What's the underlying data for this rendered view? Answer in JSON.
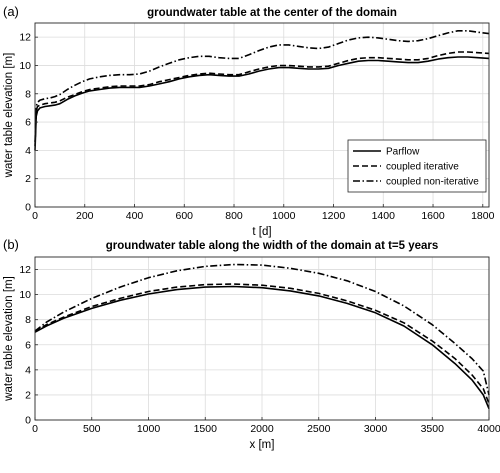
{
  "chart_data": [
    {
      "panel_label": "(a)",
      "type": "line",
      "title": "groundwater table at the center of the domain",
      "xlabel": "t [d]",
      "ylabel": "water table elevation [m]",
      "xlim": [
        0,
        1825
      ],
      "ylim": [
        0,
        13
      ],
      "xticks": [
        0,
        200,
        400,
        600,
        800,
        1000,
        1200,
        1400,
        1600,
        1800
      ],
      "yticks": [
        0,
        2,
        4,
        6,
        8,
        10,
        12
      ],
      "grid": true,
      "legend_position": "bottom-right",
      "series": [
        {
          "name": "Parflow",
          "style": "solid",
          "x": [
            0,
            5,
            10,
            20,
            40,
            60,
            80,
            100,
            130,
            160,
            190,
            220,
            260,
            300,
            340,
            380,
            420,
            460,
            500,
            540,
            580,
            620,
            660,
            700,
            740,
            780,
            820,
            860,
            900,
            940,
            980,
            1020,
            1060,
            1100,
            1140,
            1180,
            1220,
            1260,
            1300,
            1340,
            1380,
            1420,
            1460,
            1500,
            1540,
            1580,
            1620,
            1660,
            1700,
            1740,
            1780,
            1825
          ],
          "values": [
            4.0,
            6.4,
            6.8,
            7.0,
            7.1,
            7.15,
            7.2,
            7.3,
            7.6,
            7.85,
            8.05,
            8.2,
            8.3,
            8.4,
            8.45,
            8.45,
            8.45,
            8.55,
            8.7,
            8.85,
            9.05,
            9.2,
            9.3,
            9.35,
            9.3,
            9.25,
            9.25,
            9.4,
            9.6,
            9.75,
            9.85,
            9.85,
            9.8,
            9.75,
            9.75,
            9.8,
            10.0,
            10.15,
            10.3,
            10.35,
            10.35,
            10.3,
            10.25,
            10.2,
            10.2,
            10.3,
            10.45,
            10.55,
            10.6,
            10.6,
            10.55,
            10.5
          ]
        },
        {
          "name": "coupled iterative",
          "style": "dashed",
          "x": [
            0,
            5,
            10,
            20,
            40,
            60,
            80,
            100,
            130,
            160,
            190,
            220,
            260,
            300,
            340,
            380,
            420,
            460,
            500,
            540,
            580,
            620,
            660,
            700,
            740,
            780,
            820,
            860,
            900,
            940,
            980,
            1020,
            1060,
            1100,
            1140,
            1180,
            1220,
            1260,
            1300,
            1340,
            1380,
            1420,
            1460,
            1500,
            1540,
            1580,
            1620,
            1660,
            1700,
            1740,
            1780,
            1825
          ],
          "values": [
            4.3,
            6.8,
            7.1,
            7.2,
            7.3,
            7.35,
            7.4,
            7.5,
            7.75,
            7.95,
            8.15,
            8.3,
            8.4,
            8.5,
            8.55,
            8.55,
            8.55,
            8.65,
            8.85,
            9.0,
            9.15,
            9.3,
            9.4,
            9.45,
            9.4,
            9.35,
            9.35,
            9.55,
            9.75,
            9.9,
            10.0,
            10.0,
            9.95,
            9.9,
            9.9,
            9.95,
            10.15,
            10.35,
            10.5,
            10.55,
            10.55,
            10.5,
            10.45,
            10.4,
            10.4,
            10.5,
            10.7,
            10.85,
            10.95,
            10.95,
            10.9,
            10.85
          ]
        },
        {
          "name": "coupled non-iterative",
          "style": "dashdot",
          "x": [
            0,
            5,
            10,
            20,
            40,
            60,
            80,
            100,
            130,
            160,
            190,
            220,
            260,
            300,
            340,
            380,
            420,
            460,
            500,
            540,
            580,
            620,
            660,
            700,
            740,
            780,
            820,
            860,
            900,
            940,
            980,
            1020,
            1060,
            1100,
            1140,
            1180,
            1220,
            1260,
            1300,
            1340,
            1380,
            1420,
            1460,
            1500,
            1540,
            1580,
            1620,
            1660,
            1700,
            1740,
            1780,
            1825
          ],
          "values": [
            4.6,
            7.1,
            7.4,
            7.55,
            7.65,
            7.7,
            7.8,
            7.95,
            8.3,
            8.6,
            8.85,
            9.05,
            9.2,
            9.3,
            9.35,
            9.35,
            9.4,
            9.6,
            9.9,
            10.15,
            10.4,
            10.55,
            10.65,
            10.65,
            10.55,
            10.5,
            10.5,
            10.75,
            11.05,
            11.3,
            11.45,
            11.45,
            11.35,
            11.25,
            11.2,
            11.3,
            11.55,
            11.8,
            11.95,
            12.0,
            11.95,
            11.85,
            11.75,
            11.7,
            11.75,
            11.9,
            12.1,
            12.3,
            12.45,
            12.45,
            12.35,
            12.25
          ]
        }
      ]
    },
    {
      "panel_label": "(b)",
      "type": "line",
      "title": "groundwater table along the width of the domain at t=5 years",
      "xlabel": "x [m]",
      "ylabel": "water table elevation [m]",
      "xlim": [
        0,
        4000
      ],
      "ylim": [
        0,
        13
      ],
      "xticks": [
        0,
        500,
        1000,
        1500,
        2000,
        2500,
        3000,
        3500,
        4000
      ],
      "yticks": [
        0,
        2,
        4,
        6,
        8,
        10,
        12
      ],
      "grid": true,
      "series": [
        {
          "name": "Parflow",
          "style": "solid",
          "x": [
            0,
            100,
            250,
            500,
            750,
            1000,
            1250,
            1500,
            1750,
            2000,
            2250,
            2500,
            2750,
            3000,
            3250,
            3500,
            3700,
            3850,
            3950,
            4000
          ],
          "values": [
            7.0,
            7.5,
            8.1,
            8.9,
            9.55,
            10.05,
            10.4,
            10.6,
            10.65,
            10.55,
            10.3,
            9.9,
            9.3,
            8.55,
            7.5,
            6.0,
            4.5,
            3.2,
            2.0,
            0.9
          ]
        },
        {
          "name": "coupled iterative",
          "style": "dashed",
          "x": [
            0,
            100,
            250,
            500,
            750,
            1000,
            1250,
            1500,
            1750,
            2000,
            2250,
            2500,
            2750,
            3000,
            3250,
            3500,
            3700,
            3850,
            3950,
            4000
          ],
          "values": [
            7.05,
            7.6,
            8.2,
            9.05,
            9.7,
            10.25,
            10.6,
            10.8,
            10.85,
            10.75,
            10.5,
            10.1,
            9.5,
            8.75,
            7.75,
            6.3,
            4.9,
            3.6,
            2.5,
            1.3
          ]
        },
        {
          "name": "coupled non-iterative",
          "style": "dashdot",
          "x": [
            0,
            100,
            250,
            500,
            750,
            1000,
            1250,
            1500,
            1750,
            2000,
            2250,
            2500,
            2750,
            3000,
            3250,
            3500,
            3700,
            3850,
            3950,
            4000
          ],
          "values": [
            7.1,
            7.8,
            8.6,
            9.7,
            10.6,
            11.35,
            11.9,
            12.25,
            12.4,
            12.35,
            12.1,
            11.7,
            11.1,
            10.25,
            9.1,
            7.6,
            6.1,
            4.9,
            3.9,
            2.0
          ]
        }
      ]
    }
  ]
}
